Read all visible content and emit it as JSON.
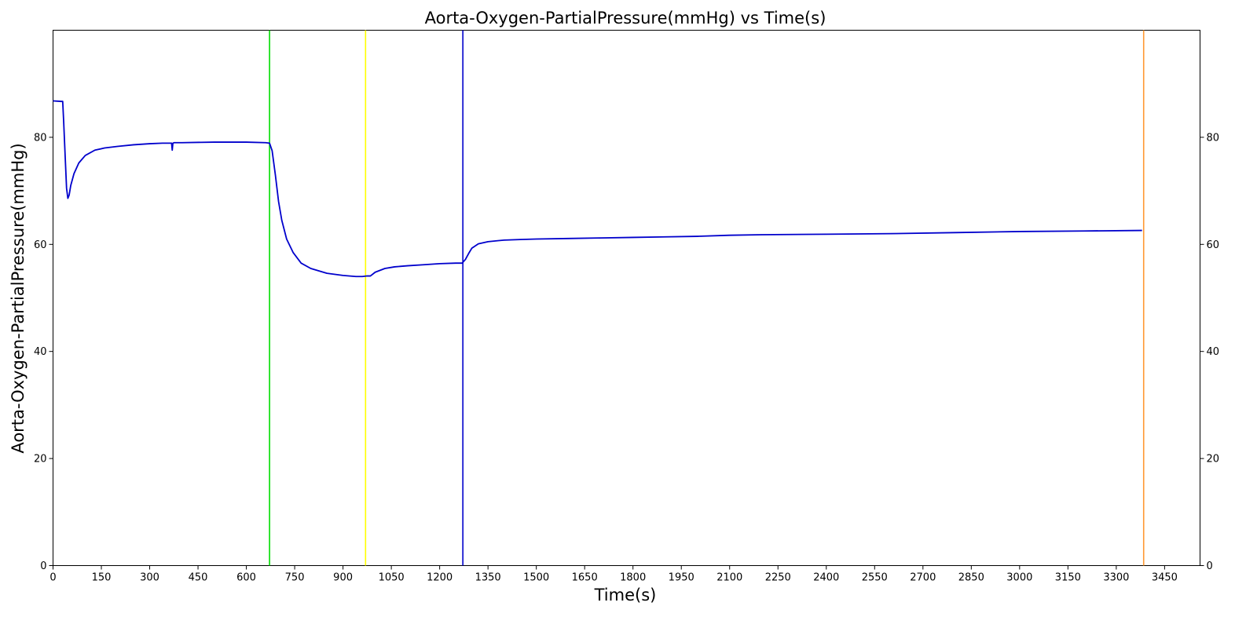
{
  "chart_data": {
    "type": "line",
    "title": "Aorta-Oxygen-PartialPressure(mmHg) vs Time(s)",
    "xlabel": "Time(s)",
    "ylabel": "Aorta-Oxygen-PartialPressure(mmHg)",
    "xlim": [
      0,
      3560
    ],
    "ylim": [
      0,
      100
    ],
    "x_ticks": [
      0,
      150,
      300,
      450,
      600,
      750,
      900,
      1050,
      1200,
      1350,
      1500,
      1650,
      1800,
      1950,
      2100,
      2250,
      2400,
      2550,
      2700,
      2850,
      3000,
      3150,
      3300,
      3450
    ],
    "y_ticks": [
      0,
      20,
      40,
      60,
      80
    ],
    "y_ticks_right": true,
    "grid": false,
    "series": [
      {
        "color": "#0000cc",
        "x": [
          0,
          25,
          30,
          33,
          38,
          42,
          46,
          50,
          55,
          65,
          80,
          100,
          130,
          160,
          200,
          250,
          300,
          340,
          368,
          370,
          372,
          376,
          400,
          500,
          600,
          660,
          672,
          680,
          690,
          700,
          710,
          725,
          745,
          770,
          800,
          850,
          900,
          940,
          960,
          975,
          985,
          1000,
          1030,
          1060,
          1100,
          1150,
          1200,
          1250,
          1270,
          1280,
          1290,
          1300,
          1320,
          1350,
          1400,
          1450,
          1500,
          1600,
          1700,
          1800,
          1900,
          2000,
          2100,
          2200,
          2400,
          2600,
          2800,
          3000,
          3200,
          3380
        ],
        "y": [
          86.8,
          86.7,
          86.7,
          83.0,
          76.0,
          70.5,
          68.6,
          69.2,
          71.0,
          73.2,
          75.2,
          76.6,
          77.6,
          78.0,
          78.3,
          78.6,
          78.8,
          78.9,
          78.9,
          77.6,
          78.9,
          79.0,
          79.0,
          79.1,
          79.1,
          79.0,
          78.9,
          77.5,
          73.0,
          68.0,
          64.5,
          61.0,
          58.5,
          56.5,
          55.5,
          54.6,
          54.2,
          54.0,
          54.0,
          54.1,
          54.1,
          54.8,
          55.5,
          55.8,
          56.0,
          56.2,
          56.4,
          56.5,
          56.5,
          57.2,
          58.3,
          59.3,
          60.1,
          60.5,
          60.8,
          60.9,
          61.0,
          61.1,
          61.2,
          61.3,
          61.4,
          61.5,
          61.7,
          61.8,
          61.9,
          62.0,
          62.2,
          62.4,
          62.5,
          62.6
        ]
      }
    ],
    "vertical_lines": [
      {
        "x": 672,
        "color": "#00dd00"
      },
      {
        "x": 970,
        "color": "#ffff00"
      },
      {
        "x": 1272,
        "color": "#0000cc"
      },
      {
        "x": 3385,
        "color": "#ff9933"
      }
    ]
  }
}
